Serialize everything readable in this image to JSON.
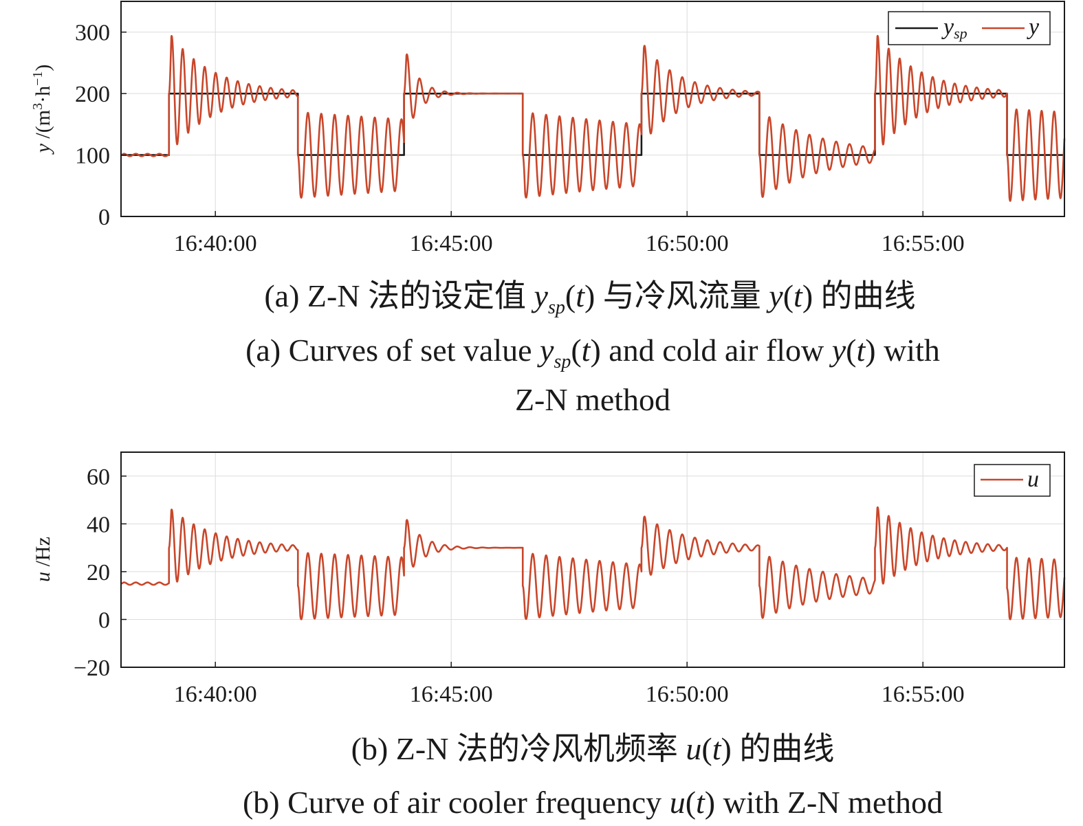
{
  "chart_data": [
    {
      "type": "line",
      "ylabel": "y /(m³·h⁻¹)",
      "ylim": [
        0,
        350
      ],
      "yticks": [
        0,
        100,
        200,
        300
      ],
      "x_ticks": [
        "16:40:00",
        "16:45:00",
        "16:50:00",
        "16:55:00"
      ],
      "xlim": [
        "16:38:00",
        "16:58:00"
      ],
      "grid": true,
      "legend_position": "top-right",
      "series": [
        {
          "name": "y_sp",
          "color": "#1a1a1a",
          "style": "step",
          "points": [
            [
              "16:38:00",
              100
            ],
            [
              "16:39:01",
              100
            ],
            [
              "16:39:01",
              200
            ],
            [
              "16:41:45",
              200
            ],
            [
              "16:41:45",
              100
            ],
            [
              "16:44:00",
              100
            ],
            [
              "16:44:00",
              200
            ],
            [
              "16:46:31",
              200
            ],
            [
              "16:46:31",
              100
            ],
            [
              "16:49:02",
              100
            ],
            [
              "16:49:02",
              200
            ],
            [
              "16:51:32",
              200
            ],
            [
              "16:51:32",
              100
            ],
            [
              "16:53:59",
              100
            ],
            [
              "16:53:59",
              200
            ],
            [
              "16:56:47",
              200
            ],
            [
              "16:56:47",
              100
            ],
            [
              "16:58:00",
              100
            ]
          ]
        },
        {
          "name": "y",
          "color": "#c8462a",
          "style": "oscillation",
          "segments": [
            {
              "start": "16:38:00",
              "end": "16:39:01",
              "mean": 100,
              "amp0": 2,
              "amp1": 2,
              "period_s": 15
            },
            {
              "start": "16:39:01",
              "end": "16:41:45",
              "mean": 200,
              "amp0": 100,
              "amp1": 5,
              "period_s": 14,
              "first": "up"
            },
            {
              "start": "16:41:45",
              "end": "16:44:00",
              "mean": 100,
              "amp0": 70,
              "amp1": 58,
              "period_s": 17,
              "first": "down"
            },
            {
              "start": "16:44:00",
              "end": "16:46:31",
              "mean": 200,
              "amp0": 80,
              "amp1": 0,
              "period_s": 16,
              "first": "up"
            },
            {
              "start": "16:46:31",
              "end": "16:49:02",
              "mean": 100,
              "amp0": 70,
              "amp1": 50,
              "period_s": 17,
              "first": "down"
            },
            {
              "start": "16:49:02",
              "end": "16:51:32",
              "mean": 200,
              "amp0": 85,
              "amp1": 3,
              "period_s": 16,
              "first": "up"
            },
            {
              "start": "16:51:32",
              "end": "16:53:59",
              "mean": 100,
              "amp0": 72,
              "amp1": 12,
              "period_s": 17,
              "first": "down"
            },
            {
              "start": "16:53:59",
              "end": "16:56:47",
              "mean": 200,
              "amp0": 100,
              "amp1": 5,
              "period_s": 14,
              "first": "up"
            },
            {
              "start": "16:56:47",
              "end": "16:58:00",
              "mean": 100,
              "amp0": 75,
              "amp1": 70,
              "period_s": 16,
              "first": "down"
            }
          ]
        }
      ]
    },
    {
      "type": "line",
      "ylabel": "u /Hz",
      "ylim": [
        -20,
        70
      ],
      "yticks": [
        -20,
        0,
        20,
        40,
        60
      ],
      "ytick_labels": [
        "−20",
        "0",
        "20",
        "40",
        "60"
      ],
      "x_ticks": [
        "16:40:00",
        "16:45:00",
        "16:50:00",
        "16:55:00"
      ],
      "xlim": [
        "16:38:00",
        "16:58:00"
      ],
      "grid": true,
      "legend_position": "top-right",
      "series": [
        {
          "name": "u",
          "color": "#c8462a",
          "style": "oscillation",
          "segments": [
            {
              "start": "16:38:00",
              "end": "16:39:01",
              "mean": 15,
              "amp0": 0.5,
              "amp1": 0.5,
              "period_s": 15
            },
            {
              "start": "16:39:01",
              "end": "16:41:45",
              "mean": 30,
              "amp0": 17,
              "amp1": 1,
              "period_s": 14,
              "first": "up"
            },
            {
              "start": "16:41:45",
              "end": "16:44:00",
              "mean": 14,
              "amp0": 14,
              "amp1": 12,
              "period_s": 17,
              "first": "down"
            },
            {
              "start": "16:44:00",
              "end": "16:46:31",
              "mean": 30,
              "amp0": 14,
              "amp1": 0,
              "period_s": 16,
              "first": "up"
            },
            {
              "start": "16:46:31",
              "end": "16:49:02",
              "mean": 14,
              "amp0": 14,
              "amp1": 9,
              "period_s": 17,
              "first": "down"
            },
            {
              "start": "16:49:02",
              "end": "16:51:32",
              "mean": 30,
              "amp0": 14,
              "amp1": 1,
              "period_s": 16,
              "first": "up"
            },
            {
              "start": "16:51:32",
              "end": "16:53:59",
              "mean": 14,
              "amp0": 14,
              "amp1": 3,
              "period_s": 17,
              "first": "down"
            },
            {
              "start": "16:53:59",
              "end": "16:56:47",
              "mean": 30,
              "amp0": 18,
              "amp1": 1,
              "period_s": 14,
              "first": "up"
            },
            {
              "start": "16:56:47",
              "end": "16:58:00",
              "mean": 13,
              "amp0": 13,
              "amp1": 12,
              "period_s": 16,
              "first": "down"
            }
          ]
        }
      ]
    }
  ],
  "captions": {
    "a_cn": "(a) Z-N 法的设定值 ysp(t) 与冷风流量 y(t) 的曲线",
    "a_en_1": "(a) Curves of set value ysp(t) and cold air flow y(t) with",
    "a_en_2": "Z-N method",
    "b_cn": "(b) Z-N 法的冷风机频率 u(t) 的曲线",
    "b_en": "(b) Curve of air cooler frequency u(t) with Z-N method"
  },
  "legend": {
    "a": [
      "y_sp",
      "y"
    ],
    "b": [
      "u"
    ]
  }
}
